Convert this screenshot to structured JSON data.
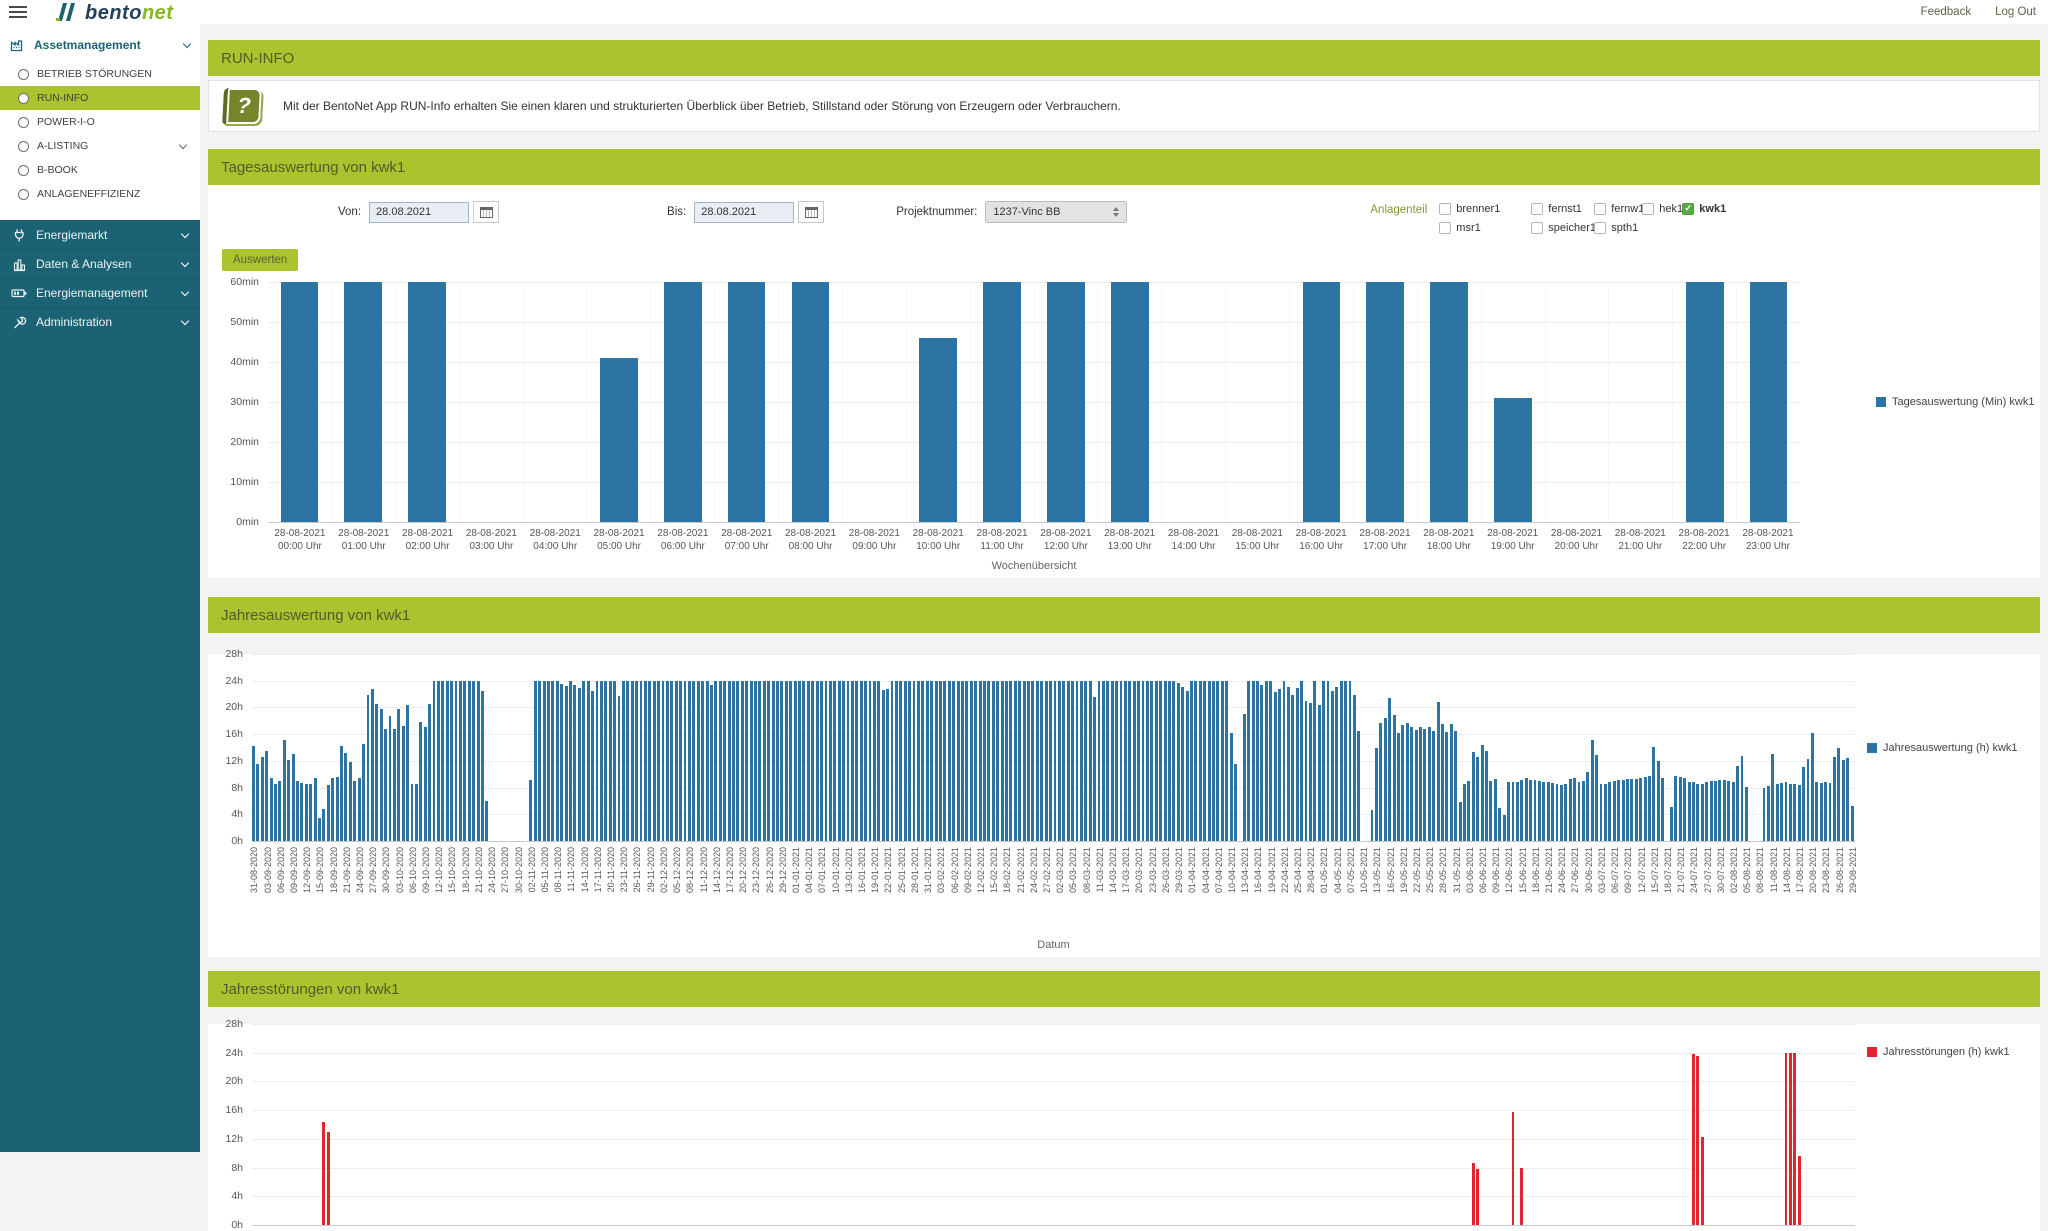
{
  "topbar": {
    "brand_bento": "bento",
    "brand_net": "net",
    "feedback": "Feedback",
    "logout": "Log Out"
  },
  "sidebar": {
    "group_label": "Assetmanagement",
    "items": [
      {
        "label": "BETRIEB STÖRUNGEN",
        "active": false,
        "chevron": false
      },
      {
        "label": "RUN-INFO",
        "active": true,
        "chevron": false
      },
      {
        "label": "POWER-I-O",
        "active": false,
        "chevron": false
      },
      {
        "label": "A-LISTING",
        "active": false,
        "chevron": true
      },
      {
        "label": "B-BOOK",
        "active": false,
        "chevron": false
      },
      {
        "label": "ANLAGENEFFIZIENZ",
        "active": false,
        "chevron": false
      }
    ],
    "sections": [
      {
        "label": "Energiemarkt",
        "icon": "plug-icon"
      },
      {
        "label": "Daten & Analysen",
        "icon": "bar-chart-icon"
      },
      {
        "label": "Energiemanagement",
        "icon": "battery-icon"
      },
      {
        "label": "Administration",
        "icon": "wrench-icon"
      }
    ]
  },
  "run_info": {
    "title": "RUN-INFO",
    "description": "Mit der BentoNet App RUN-Info erhalten Sie einen klaren und strukturierten Überblick über Betrieb, Stillstand oder Störung von Erzeugern oder Verbrauchern."
  },
  "form": {
    "von_label": "Von:",
    "von_value": "28.08.2021",
    "bis_label": "Bis:",
    "bis_value": "28.08.2021",
    "projekt_label": "Projektnummer:",
    "projekt_value": "1237-Vinc BB",
    "anlagenteil": {
      "label": "Anlagenteil",
      "options": [
        {
          "label": "brenner1",
          "checked": false
        },
        {
          "label": "fernst1",
          "checked": false
        },
        {
          "label": "fernw1",
          "checked": false
        },
        {
          "label": "hek1",
          "checked": false
        },
        {
          "label": "kwk1",
          "checked": true
        },
        {
          "label": "msr1",
          "checked": false
        },
        {
          "label": "speicher1",
          "checked": false
        },
        {
          "label": "spth1",
          "checked": false
        }
      ]
    },
    "submit_label": "Auswerten"
  },
  "colors": {
    "accent_green": "#adc22f",
    "teal": "#1b6374",
    "bar_blue": "#2d74a2",
    "bar_red": "#e42330"
  },
  "chart_data": [
    {
      "id": "tagesauswertung",
      "type": "bar",
      "title": "Tagesauswertung von kwk1",
      "legend": "Tagesauswertung (Min) kwk1",
      "xlabel": "Wochenübersicht",
      "ylim": [
        0,
        60
      ],
      "ytick_step": 10,
      "yticks": [
        "60min",
        "50min",
        "40min",
        "30min",
        "20min",
        "10min",
        "0min"
      ],
      "categories_date": "28-08-2021",
      "categories_time": [
        "00:00 Uhr",
        "01:00 Uhr",
        "02:00 Uhr",
        "03:00 Uhr",
        "04:00 Uhr",
        "05:00 Uhr",
        "06:00 Uhr",
        "07:00 Uhr",
        "08:00 Uhr",
        "09:00 Uhr",
        "10:00 Uhr",
        "11:00 Uhr",
        "12:00 Uhr",
        "13:00 Uhr",
        "14:00 Uhr",
        "15:00 Uhr",
        "16:00 Uhr",
        "17:00 Uhr",
        "18:00 Uhr",
        "19:00 Uhr",
        "20:00 Uhr",
        "21:00 Uhr",
        "22:00 Uhr",
        "23:00 Uhr"
      ],
      "values": [
        60,
        60,
        60,
        0,
        0,
        41,
        60,
        60,
        60,
        0,
        46,
        60,
        60,
        60,
        0,
        0,
        60,
        60,
        60,
        31,
        0,
        0,
        60,
        60
      ]
    },
    {
      "id": "jahresauswertung",
      "type": "bar",
      "title": "Jahresauswertung von kwk1",
      "legend": "Jahresauswertung (h) kwk1",
      "xlabel": "Datum",
      "ylim": [
        0,
        28
      ],
      "ytick_step": 4,
      "yticks": [
        "28h",
        "24h",
        "20h",
        "16h",
        "12h",
        "8h",
        "4h",
        "0h"
      ],
      "tick_every": 3,
      "tick_labels": [
        "31-08-2020",
        "03-09-2020",
        "06-09-2020",
        "09-09-2020",
        "12-09-2020",
        "15-09-2020",
        "18-09-2020",
        "21-09-2020",
        "24-09-2020",
        "27-09-2020",
        "30-09-2020",
        "03-10-2020",
        "06-10-2020",
        "09-10-2020",
        "12-10-2020",
        "15-10-2020",
        "18-10-2020",
        "21-10-2020",
        "24-10-2020",
        "27-10-2020",
        "30-10-2020",
        "02-11-2020",
        "05-11-2020",
        "08-11-2020",
        "11-11-2020",
        "14-11-2020",
        "17-11-2020",
        "20-11-2020",
        "23-11-2020",
        "26-11-2020",
        "29-11-2020",
        "02-12-2020",
        "05-12-2020",
        "08-12-2020",
        "11-12-2020",
        "14-12-2020",
        "17-12-2020",
        "20-12-2020",
        "23-12-2020",
        "26-12-2020",
        "29-12-2020",
        "01-01-2021",
        "04-01-2021",
        "07-01-2021",
        "10-01-2021",
        "13-01-2021",
        "16-01-2021",
        "19-01-2021",
        "22-01-2021",
        "25-01-2021",
        "28-01-2021",
        "31-01-2021",
        "03-02-2021",
        "06-02-2021",
        "09-02-2021",
        "12-02-2021",
        "15-02-2021",
        "18-02-2021",
        "21-02-2021",
        "24-02-2021",
        "27-02-2021",
        "02-03-2021",
        "05-03-2021",
        "08-03-2021",
        "11-03-2021",
        "14-03-2021",
        "17-03-2021",
        "20-03-2021",
        "23-03-2021",
        "26-03-2021",
        "29-03-2021",
        "01-04-2021",
        "04-04-2021",
        "07-04-2021",
        "10-04-2021",
        "13-04-2021",
        "16-04-2021",
        "19-04-2021",
        "22-04-2021",
        "25-04-2021",
        "28-04-2021",
        "01-05-2021",
        "04-05-2021",
        "07-05-2021",
        "10-05-2021",
        "13-05-2021",
        "16-05-2021",
        "19-05-2021",
        "22-05-2021",
        "25-05-2021",
        "28-05-2021",
        "31-05-2021",
        "03-06-2021",
        "06-06-2021",
        "09-06-2021",
        "12-06-2021",
        "15-06-2021",
        "18-06-2021",
        "21-06-2021",
        "24-06-2021",
        "27-06-2021",
        "30-06-2021",
        "03-07-2021",
        "06-07-2021",
        "09-07-2021",
        "12-07-2021",
        "15-07-2021",
        "18-07-2021",
        "21-07-2021",
        "24-07-2021",
        "27-07-2021",
        "30-07-2021",
        "02-08-2021",
        "05-08-2021",
        "08-08-2021",
        "11-08-2021",
        "14-08-2021",
        "17-08-2021",
        "20-08-2021",
        "23-08-2021",
        "26-08-2021",
        "29-08-2021"
      ],
      "values": [
        14.2,
        11.5,
        12.6,
        13.5,
        9.5,
        8.6,
        9,
        15.2,
        12.1,
        13.1,
        9,
        8.7,
        8.6,
        8.6,
        9.5,
        3.4,
        4.8,
        8.4,
        9.5,
        9.6,
        14.2,
        13.2,
        11.8,
        9,
        9.4,
        14.5,
        21.8,
        22.7,
        20.5,
        19.8,
        16.8,
        18.7,
        16.7,
        19.8,
        17.2,
        20.3,
        8.5,
        8.5,
        17.8,
        17,
        20.5,
        24,
        24,
        24,
        24,
        24,
        24,
        24,
        24,
        24,
        24,
        24,
        22.5,
        6,
        0,
        0,
        0,
        0,
        0,
        0,
        0,
        0,
        0,
        9.2,
        24,
        24,
        24,
        24,
        24,
        24,
        23.5,
        23.2,
        24,
        23.4,
        22.9,
        24,
        24,
        22.4,
        24,
        24,
        24,
        24,
        24,
        21.7,
        24,
        24,
        24,
        24,
        24,
        24,
        24,
        24,
        24,
        24,
        24,
        24,
        24,
        24,
        24,
        24,
        24,
        24,
        24,
        24,
        23.3,
        24,
        24,
        24,
        24,
        24,
        24,
        24,
        24,
        24,
        24,
        24,
        24,
        24,
        24,
        24,
        24,
        24,
        24,
        24,
        24,
        24,
        24,
        24,
        24,
        24,
        24,
        24,
        24,
        24,
        24,
        24,
        24,
        24,
        24,
        24,
        24,
        24,
        24,
        22.6,
        22.7,
        24,
        24,
        24,
        24,
        24,
        24,
        24,
        24,
        24,
        24,
        24,
        24,
        24,
        24,
        24,
        24,
        24,
        24,
        24,
        24,
        24,
        24,
        24,
        24,
        24,
        24,
        24,
        24,
        24,
        24,
        24,
        24,
        24,
        24,
        24,
        24,
        24,
        24,
        24,
        24,
        24,
        24,
        24,
        24,
        24,
        24,
        21.5,
        24,
        24,
        24,
        24,
        24,
        24,
        24,
        24,
        24,
        24,
        24,
        24,
        24,
        24,
        24,
        24,
        24,
        24,
        23.6,
        23,
        22.4,
        24,
        24,
        24,
        24,
        24,
        24,
        24,
        24,
        24,
        16.1,
        11.5,
        0,
        19,
        24,
        24,
        24,
        23.3,
        24,
        24,
        22.3,
        22.8,
        24,
        23.1,
        21.8,
        22.9,
        24,
        21,
        20.6,
        24,
        20.3,
        24,
        24,
        22.5,
        23,
        24,
        24,
        24,
        21.9,
        16.4,
        0,
        0,
        4.6,
        14,
        17.6,
        18.4,
        21.4,
        18.9,
        16.1,
        17.4,
        17.6,
        17.1,
        16.6,
        17,
        16.8,
        17,
        16.4,
        20.8,
        17.5,
        16.3,
        17.5,
        16.5,
        5.9,
        8.6,
        9,
        13.4,
        12.6,
        14.4,
        13.5,
        9,
        9.3,
        5,
        3.9,
        8.8,
        8.8,
        8.9,
        9.2,
        9.4,
        9.2,
        9.1,
        9,
        8.9,
        8.8,
        8.7,
        8.5,
        8.4,
        8.5,
        9.3,
        9.5,
        8.8,
        9,
        10.4,
        15.1,
        12.9,
        8.6,
        8.6,
        8.8,
        9,
        9.1,
        9.2,
        9.3,
        9.3,
        9.3,
        9.4,
        9.6,
        9.7,
        14.1,
        12,
        9.5,
        0,
        5.1,
        9.8,
        9.6,
        9.4,
        8.9,
        8.8,
        8.6,
        8.6,
        8.8,
        9,
        9,
        9.1,
        9.1,
        9,
        8.9,
        11.3,
        12.8,
        8.1,
        0,
        0,
        0,
        8,
        8.3,
        13.1,
        8.6,
        8.7,
        8.8,
        8.6,
        8.5,
        8.4,
        11.1,
        12.3,
        16.1,
        8.8,
        8.7,
        8.8,
        8.7,
        12.6,
        13.9,
        12.2,
        12.4,
        5.3
      ]
    },
    {
      "id": "jahresstoerungen",
      "type": "bar",
      "title": "Jahresstörungen von kwk1",
      "legend": "Jahresstörungen (h) kwk1",
      "ylim": [
        0,
        28
      ],
      "ytick_step": 4,
      "yticks": [
        "28h",
        "24h",
        "20h",
        "16h",
        "12h",
        "8h",
        "4h",
        "0h"
      ],
      "x_slots": 364,
      "points": [
        {
          "index": 16,
          "date": "16-09-2020",
          "value": 14.3
        },
        {
          "index": 17,
          "date": "17-09-2020",
          "value": 13.0
        },
        {
          "index": 277,
          "date": "04-06-2021",
          "value": 8.6
        },
        {
          "index": 278,
          "date": "05-06-2021",
          "value": 7.8
        },
        {
          "index": 286,
          "date": "13-06-2021",
          "value": 15.8
        },
        {
          "index": 288,
          "date": "15-06-2021",
          "value": 8.0
        },
        {
          "index": 327,
          "date": "24-07-2021",
          "value": 23.8
        },
        {
          "index": 328,
          "date": "25-07-2021",
          "value": 23.5
        },
        {
          "index": 329,
          "date": "26-07-2021",
          "value": 12.3
        },
        {
          "index": 348,
          "date": "14-08-2021",
          "value": 24
        },
        {
          "index": 349,
          "date": "15-08-2021",
          "value": 24
        },
        {
          "index": 350,
          "date": "16-08-2021",
          "value": 24
        },
        {
          "index": 351,
          "date": "17-08-2021",
          "value": 9.6
        }
      ]
    }
  ]
}
